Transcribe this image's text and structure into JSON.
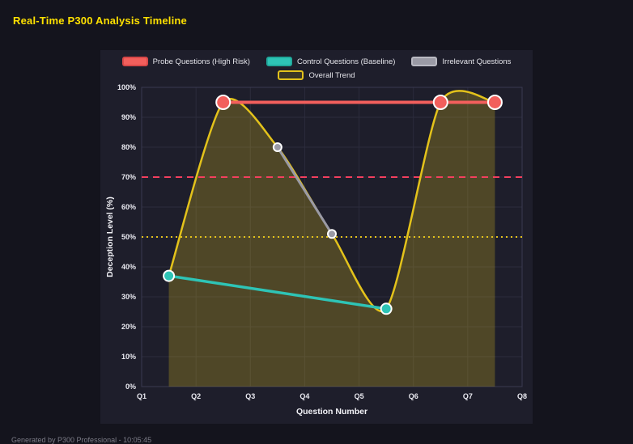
{
  "page": {
    "title": "Real-Time P300 Analysis Timeline",
    "footer": "Generated by P300 Professional - 10:05:45"
  },
  "colors": {
    "background": "#14141d",
    "panel": "#1e1e2b",
    "grid": "#2c2c3c",
    "plot_border": "#3a3a50",
    "tick_text": "#e9e9f0",
    "axis_title_text": "#f2f2f7",
    "title_text": "#ffe100",
    "footer_text": "#7d7d88",
    "legend_text": "#e4e4ea",
    "probe": "#f25f5c",
    "control": "#2ec4b6",
    "irrelevant": "#9a9aa5",
    "trend": "#e3c21b",
    "threshold_high": "#f43f5e",
    "threshold_mid": "#e3c21b"
  },
  "legend": {
    "rows": [
      [
        {
          "label": "Probe Questions (High Risk)",
          "fill": "#f25f5c",
          "border": "#d84848"
        },
        {
          "label": "Control Questions (Baseline)",
          "fill": "#2ec4b6",
          "border": "#21a99c"
        },
        {
          "label": "Irrelevant Questions",
          "fill": "#9a9aa5",
          "border": "#b9b9c2"
        }
      ],
      [
        {
          "label": "Overall Trend",
          "fill": "#3a3526",
          "border": "#e3c21b"
        }
      ]
    ]
  },
  "chart_data": {
    "type": "line",
    "title": "Real-Time P300 Analysis Timeline",
    "xlabel": "Question Number",
    "ylabel": "Deception Level (%)",
    "x_ticks": [
      "Q1",
      "Q2",
      "Q3",
      "Q4",
      "Q5",
      "Q6",
      "Q7",
      "Q8"
    ],
    "y_ticks": [
      "0%",
      "10%",
      "20%",
      "30%",
      "40%",
      "50%",
      "60%",
      "70%",
      "80%",
      "90%",
      "100%"
    ],
    "xlim": [
      1,
      8
    ],
    "ylim": [
      0,
      100
    ],
    "grid": true,
    "legend_position": "top",
    "series": [
      {
        "name": "Probe Questions (High Risk)",
        "color": "#f25f5c",
        "points": [
          [
            2.5,
            95
          ],
          [
            6.5,
            95
          ],
          [
            7.5,
            95
          ]
        ],
        "line_width": 4,
        "marker_radius": 8.5
      },
      {
        "name": "Control Questions (Baseline)",
        "color": "#2ec4b6",
        "points": [
          [
            1.5,
            37
          ],
          [
            5.5,
            26
          ]
        ],
        "line_width": 3.5,
        "marker_radius": 6.5
      },
      {
        "name": "Irrelevant Questions",
        "color": "#9a9aa5",
        "points": [
          [
            3.5,
            80
          ],
          [
            4.5,
            51
          ]
        ],
        "line_width": 3,
        "marker_radius": 5
      },
      {
        "name": "Overall Trend",
        "color": "#e3c21b",
        "points": [
          [
            1.5,
            37
          ],
          [
            2.5,
            95
          ],
          [
            3.5,
            80
          ],
          [
            4.5,
            51
          ],
          [
            5.5,
            26
          ],
          [
            6.5,
            95
          ],
          [
            7.5,
            95
          ]
        ],
        "line_width": 2.5,
        "smooth": true,
        "fill": true,
        "fill_color": "rgba(227,194,27,0.25)"
      }
    ],
    "thresholds": [
      {
        "value": 70,
        "color": "#f43f5e",
        "dash": "8 6",
        "line_width": 2
      },
      {
        "value": 50,
        "color": "#e3c21b",
        "dash": "2 4",
        "line_width": 2
      }
    ]
  }
}
